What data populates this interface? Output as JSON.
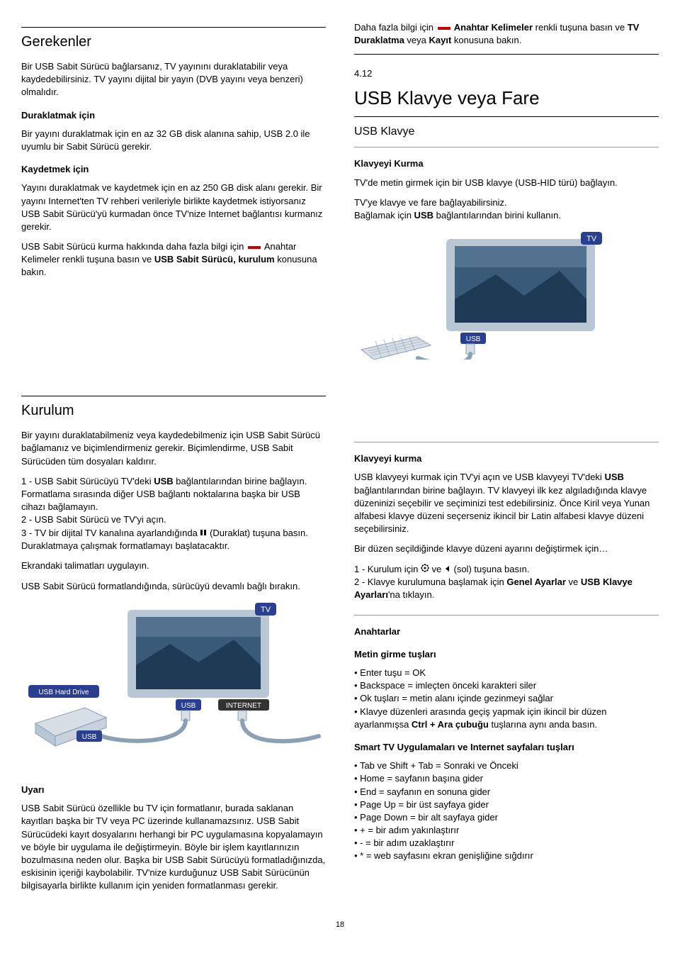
{
  "page_number": "18",
  "left": {
    "gerekenler": {
      "title": "Gerekenler",
      "p1": "Bir USB Sabit Sürücü bağlarsanız, TV yayınını duraklatabilir veya kaydedebilirsiniz. TV yayını dijital bir yayın (DVB yayını veya benzeri) olmalıdır.",
      "h_pause": "Duraklatmak için",
      "p2": "Bir yayını duraklatmak için en az 32 GB disk alanına sahip, USB 2.0 ile uyumlu bir Sabit Sürücü gerekir.",
      "h_record": "Kaydetmek için",
      "p3": "Yayını duraklatmak ve kaydetmek için en az 250 GB disk alanı gerekir. Bir yayını Internet'ten TV rehberi verileriyle birlikte kaydetmek istiyorsanız USB Sabit Sürücü'yü kurmadan önce TV'nize Internet bağlantısı kurmanız gerekir.",
      "p4a": "USB Sabit Sürücü kurma hakkında daha fazla bilgi için ",
      "p4b": " Anahtar Kelimeler renkli tuşuna basın ve ",
      "p4c": "USB Sabit Sürücü, kurulum",
      "p4d": " konusuna bakın."
    },
    "kurulum": {
      "title": "Kurulum",
      "p1": "Bir yayını duraklatabilmeniz veya kaydedebilmeniz için USB Sabit Sürücü bağlamanız ve biçimlendirmeniz gerekir. Biçimlendirme, USB Sabit Sürücüden tüm dosyaları kaldırır.",
      "s1a": "1 - USB Sabit Sürücüyü TV'deki ",
      "s1b": "USB",
      "s1c": " bağlantılarından birine bağlayın. Formatlama sırasında diğer USB bağlantı noktalarına başka bir USB cihazı bağlamayın.",
      "s2": "2 - USB Sabit Sürücü ve TV'yi açın.",
      "s3a": "3 - TV bir dijital TV kanalına ayarlandığında ",
      "s3b": " (Duraklat) tuşuna basın. Duraklatmaya çalışmak formatlamayı başlatacaktır.",
      "p2": "Ekrandaki talimatları uygulayın.",
      "p3": "USB Sabit Sürücü formatlandığında, sürücüyü devamlı bağlı bırakın.",
      "h_warn": "Uyarı",
      "p4": "USB Sabit Sürücü özellikle bu TV için formatlanır, burada saklanan kayıtları başka bir TV veya PC üzerinde kullanamazsınız. USB Sabit Sürücüdeki kayıt dosyalarını herhangi bir PC uygulamasına kopyalamayın ve böyle bir uygulama ile değiştirmeyin. Böyle bir işlem kayıtlarınızın bozulmasına neden olur. Başka bir USB Sabit Sürücüyü formatladığınızda, eskisinin içeriği kaybolabilir. TV'nize kurduğunuz USB Sabit Sürücünün bilgisayarla birlikte kullanım için yeniden formatlanması gerekir."
    }
  },
  "right": {
    "intro_a": "Daha fazla bilgi için ",
    "intro_b": " Anahtar Kelimeler",
    "intro_c": " renkli tuşuna basın ve ",
    "intro_d": "TV Duraklatma",
    "intro_e": " veya ",
    "intro_f": "Kayıt",
    "intro_g": " konusuna bakın.",
    "sec_num": "4.12",
    "sec_title": "USB Klavye veya Fare",
    "h_usbklavye": "USB Klavye",
    "h_klavyeyi": "Klavyeyi Kurma",
    "p1": "TV'de metin girmek için bir USB klavye (USB-HID türü) bağlayın.",
    "p2a": "TV'ye klavye ve fare bağlayabilirsiniz.",
    "p2b": "Bağlamak için ",
    "p2c": "USB",
    "p2d": " bağlantılarından birini kullanın.",
    "h_klavyeyi2": "Klavyeyi kurma",
    "p3a": "USB klavyeyi kurmak için TV'yi açın ve USB klavyeyi TV'deki ",
    "p3b": "USB",
    "p3c": " bağlantılarından birine bağlayın. TV klavyeyi ilk kez algıladığında klavye düzeninizi seçebilir ve seçiminizi test edebilirsiniz. Önce Kiril veya Yunan alfabesi klavye düzeni seçerseniz ikincil bir Latin alfabesi klavye düzeni seçebilirsiniz.",
    "p4": "Bir düzen seçildiğinde klavye düzeni ayarını değiştirmek için…",
    "s1a": "1 - Kurulum için ",
    "s1b": " ve ",
    "s1c": " (sol) tuşuna basın.",
    "s2a": "2 - Klavye kurulumuna başlamak için ",
    "s2b": "Genel Ayarlar",
    "s2c": " ve ",
    "s2d": "USB Klavye Ayarları",
    "s2e": "'na tıklayın.",
    "h_anahtarlar": "Anahtarlar",
    "h_metin": "Metin girme tuşları",
    "metin_items": [
      "Enter tuşu = OK",
      "Backspace = imleçten önceki karakteri siler",
      "Ok tuşları = metin alanı içinde gezinmeyi sağlar"
    ],
    "metin_last_a": "Klavye düzenleri arasında geçiş yapmak için ikincil bir düzen ayarlanmışsa ",
    "metin_last_b": "Ctrl + Ara çubuğu",
    "metin_last_c": " tuşlarına aynı anda basın.",
    "h_smart": "Smart TV Uygulamaları ve Internet sayfaları tuşları",
    "smart_items": [
      "Tab ve Shift + Tab = Sonraki ve Önceki",
      "Home = sayfanın başına gider",
      "End = sayfanın en sonuna gider",
      "Page Up = bir üst sayfaya gider",
      "Page Down = bir alt sayfaya gider",
      "+ = bir adım yakınlaştırır",
      "- = bir adım uzaklaştırır",
      "* = web sayfasını ekran genişliğine sığdırır"
    ]
  },
  "diagram1": {
    "tv_label": "TV",
    "usb_label": "USB",
    "hdd_label": "USB Hard Drive",
    "internet_label": "INTERNET",
    "colors": {
      "tv_body": "#b9c7d4",
      "tv_screen": "#2a4a6a",
      "badge_bg": "#2a3f8f",
      "badge_text": "#ffffff",
      "cable": "#8aa0b5",
      "plug": "#d8dee5"
    }
  },
  "diagram2": {
    "tv_label": "TV",
    "usb_label": "USB",
    "colors": {
      "tv_body": "#b9c7d4",
      "tv_screen": "#2a4a6a",
      "badge_bg": "#2a3f8f",
      "badge_text": "#ffffff",
      "cable": "#8aa0b5",
      "plug": "#d8dee5"
    }
  }
}
